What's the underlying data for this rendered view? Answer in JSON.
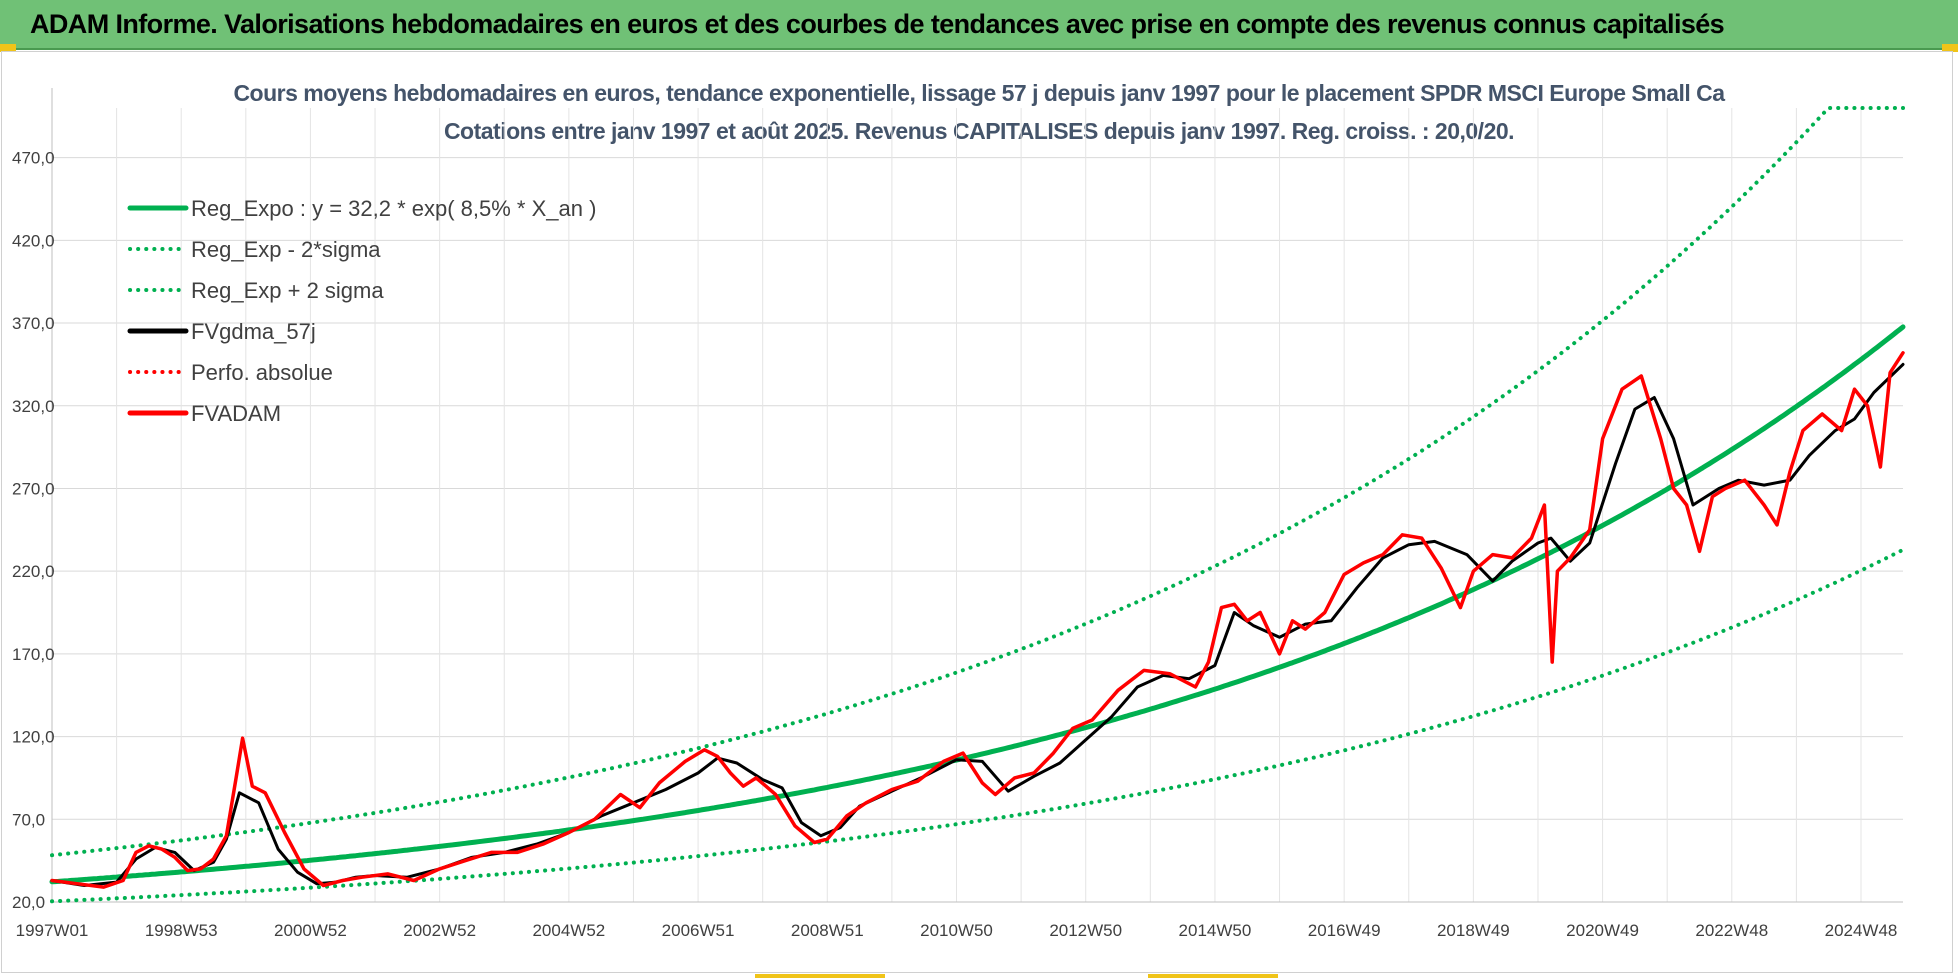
{
  "banner": {
    "title": "ADAM Informe. Valorisations hebdomadaires en euros et des courbes de tendances avec prise en compte des revenus connus capitalisés"
  },
  "colors": {
    "banner_bg": "#70c176",
    "trend_green": "#00b050",
    "black_series": "#000000",
    "red_series": "#ff0000",
    "title_text": "#44546a"
  },
  "chart_data": {
    "type": "line",
    "title": "Cours moyens hebdomadaires en euros, tendance exponentielle, lissage 57 j depuis janv 1997 pour le placement SPDR MSCI Europe Small Ca",
    "subtitle": "Cotations entre janv 1997 et août 2025.  Revenus CAPITALISES depuis janv 1997. Reg. croiss. : 20,0/20.",
    "xlabel": "",
    "ylabel": "",
    "ylim": [
      20,
      500
    ],
    "xlim": [
      1997.0,
      2025.65
    ],
    "y_ticks": [
      "20,0",
      "70,0",
      "120,0",
      "170,0",
      "220,0",
      "270,0",
      "320,0",
      "370,0",
      "420,0",
      "470,0"
    ],
    "y_tick_values": [
      20,
      70,
      120,
      170,
      220,
      270,
      320,
      370,
      420,
      470
    ],
    "x_ticks": [
      "1997W01",
      "1998W53",
      "2000W52",
      "2002W52",
      "2004W52",
      "2006W51",
      "2008W51",
      "2010W50",
      "2012W50",
      "2014W50",
      "2016W49",
      "2018W49",
      "2020W49",
      "2022W48",
      "2024W48"
    ],
    "x_tick_values": [
      1997.0,
      1999.0,
      2001.0,
      2003.0,
      2005.0,
      2007.0,
      2009.0,
      2011.0,
      2013.0,
      2015.0,
      2017.0,
      2019.0,
      2021.0,
      2023.0,
      2025.0
    ],
    "grid": true,
    "legend_position": "top-left",
    "series": [
      {
        "name": "Reg_Expo : y = 32,2 * exp( 8,5% *  X_an )",
        "style": "solid",
        "color": "#00b050",
        "kind": "formula",
        "a": 32.2,
        "k": 0.085
      },
      {
        "name": "Reg_Exp - 2*sigma",
        "style": "dotted",
        "color": "#00b050",
        "kind": "formula",
        "a": 20.4,
        "k": 0.085
      },
      {
        "name": "Reg_Exp + 2 sigma",
        "style": "dotted",
        "color": "#00b050",
        "kind": "formula",
        "a": 48.3,
        "k": 0.085,
        "cap": 500
      },
      {
        "name": "FVgdma_57j",
        "style": "solid",
        "color": "#000000",
        "x": [
          1997.0,
          1997.5,
          1998.0,
          1998.3,
          1998.6,
          1998.9,
          1999.2,
          1999.5,
          1999.7,
          1999.9,
          2000.2,
          2000.5,
          2000.8,
          2001.1,
          2001.4,
          2001.7,
          2002.0,
          2002.5,
          2003.0,
          2003.5,
          2004.0,
          2004.5,
          2005.0,
          2005.5,
          2006.0,
          2006.5,
          2007.0,
          2007.3,
          2007.6,
          2008.0,
          2008.3,
          2008.6,
          2008.9,
          2009.2,
          2009.5,
          2010.0,
          2010.5,
          2011.0,
          2011.4,
          2011.8,
          2012.2,
          2012.6,
          2013.0,
          2013.4,
          2013.8,
          2014.2,
          2014.6,
          2015.0,
          2015.3,
          2015.6,
          2016.0,
          2016.4,
          2016.8,
          2017.2,
          2017.6,
          2018.0,
          2018.4,
          2018.9,
          2019.3,
          2019.6,
          2020.0,
          2020.2,
          2020.5,
          2020.8,
          2021.2,
          2021.5,
          2021.8,
          2022.1,
          2022.4,
          2022.8,
          2023.1,
          2023.5,
          2023.9,
          2024.2,
          2024.6,
          2024.9,
          2025.2,
          2025.65
        ],
        "y": [
          33,
          30,
          32,
          46,
          53,
          50,
          39,
          44,
          58,
          86,
          80,
          52,
          38,
          31,
          32,
          35,
          36,
          35,
          40,
          47,
          50,
          55,
          62,
          72,
          80,
          88,
          98,
          107,
          104,
          94,
          89,
          68,
          60,
          65,
          78,
          87,
          96,
          106,
          105,
          87,
          96,
          104,
          118,
          132,
          150,
          157,
          155,
          163,
          195,
          187,
          180,
          188,
          190,
          210,
          228,
          236,
          238,
          230,
          214,
          226,
          237,
          240,
          226,
          237,
          285,
          318,
          325,
          300,
          260,
          270,
          275,
          272,
          275,
          290,
          305,
          312,
          328,
          345
        ]
      },
      {
        "name": "Perfo. absolue",
        "style": "dotted",
        "color": "#ff0000",
        "kind": "hidden"
      },
      {
        "name": "FVADAM",
        "style": "solid",
        "color": "#ff0000",
        "x": [
          1997.0,
          1997.4,
          1997.8,
          1998.1,
          1998.3,
          1998.5,
          1998.7,
          1998.9,
          1999.1,
          1999.3,
          1999.5,
          1999.7,
          1999.85,
          1999.95,
          2000.1,
          2000.3,
          2000.6,
          2000.9,
          2001.2,
          2001.5,
          2001.8,
          2002.2,
          2002.6,
          2003.0,
          2003.4,
          2003.8,
          2004.2,
          2004.6,
          2005.0,
          2005.4,
          2005.8,
          2006.1,
          2006.4,
          2006.8,
          2007.1,
          2007.3,
          2007.5,
          2007.7,
          2007.9,
          2008.2,
          2008.5,
          2008.8,
          2009.0,
          2009.3,
          2009.6,
          2010.0,
          2010.4,
          2010.8,
          2011.1,
          2011.4,
          2011.6,
          2011.9,
          2012.2,
          2012.5,
          2012.8,
          2013.1,
          2013.5,
          2013.9,
          2014.3,
          2014.7,
          2014.9,
          2015.1,
          2015.3,
          2015.5,
          2015.7,
          2016.0,
          2016.2,
          2016.4,
          2016.7,
          2017.0,
          2017.3,
          2017.6,
          2017.9,
          2018.2,
          2018.5,
          2018.8,
          2019.0,
          2019.3,
          2019.6,
          2019.9,
          2020.1,
          2020.22,
          2020.3,
          2020.5,
          2020.8,
          2021.0,
          2021.3,
          2021.6,
          2021.9,
          2022.1,
          2022.3,
          2022.5,
          2022.7,
          2022.9,
          2023.2,
          2023.5,
          2023.7,
          2023.9,
          2024.1,
          2024.4,
          2024.7,
          2024.9,
          2025.1,
          2025.3,
          2025.45,
          2025.65
        ],
        "y": [
          33,
          31,
          29,
          33,
          50,
          54,
          52,
          47,
          39,
          40,
          46,
          60,
          95,
          119,
          90,
          86,
          62,
          40,
          30,
          33,
          35,
          37,
          33,
          40,
          45,
          50,
          50,
          55,
          62,
          70,
          85,
          77,
          92,
          105,
          112,
          108,
          98,
          90,
          95,
          85,
          66,
          56,
          58,
          72,
          80,
          88,
          93,
          105,
          110,
          92,
          85,
          95,
          98,
          110,
          125,
          130,
          148,
          160,
          158,
          150,
          165,
          198,
          200,
          190,
          195,
          170,
          190,
          185,
          195,
          218,
          225,
          230,
          242,
          240,
          222,
          198,
          220,
          230,
          228,
          240,
          260,
          165,
          220,
          228,
          245,
          300,
          330,
          338,
          300,
          270,
          260,
          232,
          265,
          270,
          275,
          260,
          248,
          280,
          305,
          315,
          305,
          330,
          320,
          283,
          340,
          352
        ]
      }
    ]
  }
}
